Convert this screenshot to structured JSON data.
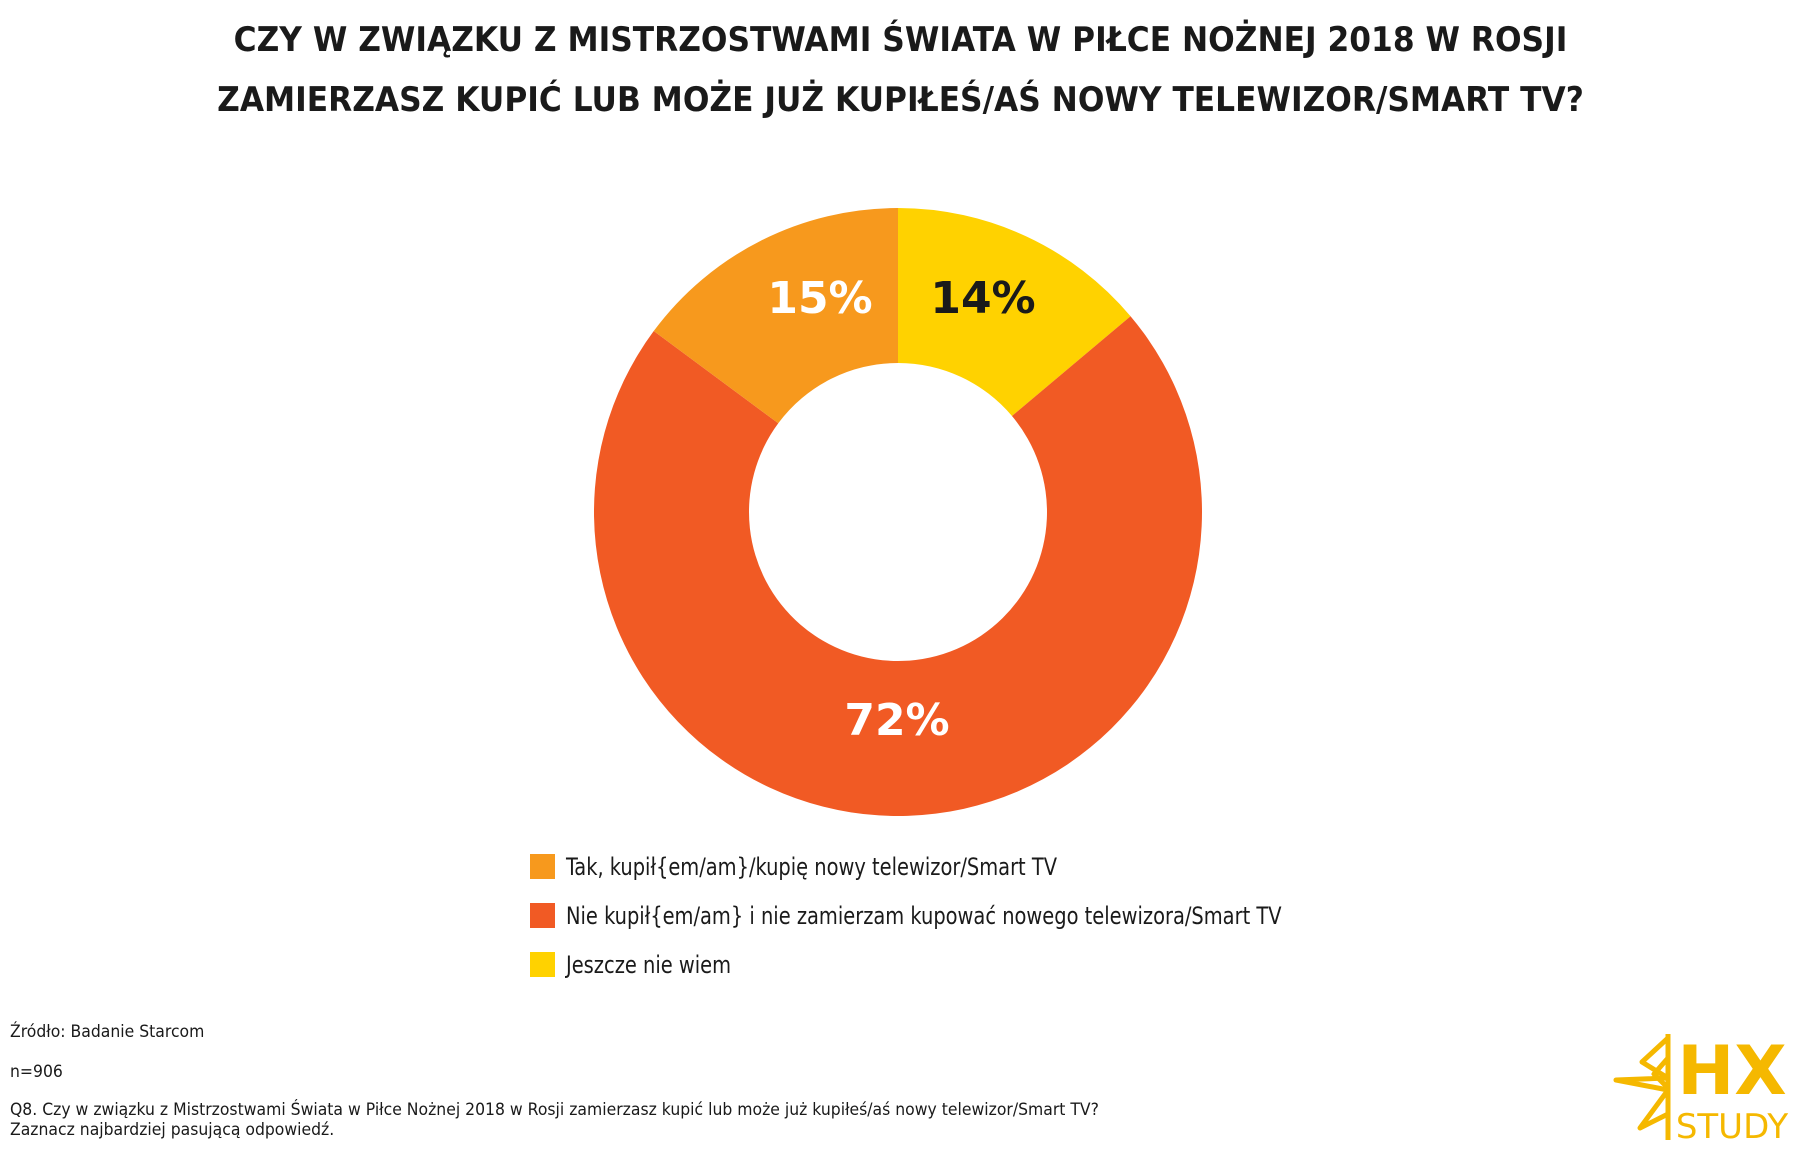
{
  "title": {
    "line1": "CZY W ZWIĄZKU Z MISTRZOSTWAMI ŚWIATA W PIŁCE NOŻNEJ 2018 W ROSJI",
    "line2": "ZAMIERZASZ KUPIĆ LUB MOŻE JUŻ KUPIŁEŚ/AŚ NOWY TELEWIZOR/SMART TV?"
  },
  "legend": {
    "items": [
      {
        "label": "Tak, kupił{em/am}/kupię nowy telewizor/Smart TV",
        "color": "#F7991D"
      },
      {
        "label": "Nie kupił{em/am} i nie zamierzam kupować nowego telewizora/Smart TV",
        "color": "#F15A24"
      },
      {
        "label": "Jeszcze nie wiem",
        "color": "#FFD200"
      }
    ]
  },
  "footer": {
    "source": "Źródło: Badanie Starcom",
    "sample": "n=906",
    "question_line1": "Q8. Czy w związku z Mistrzostwami Świata w Piłce Nożnej 2018 w Rosji zamierzasz kupić lub może już kupiłeś/aś nowy telewizor/Smart TV?",
    "question_line2": "Zaznacz najbardziej pasującą odpowiedź."
  },
  "logo": {
    "top": "HX",
    "bottom": "STUDY",
    "color": "#F5B800"
  },
  "chart_data": {
    "type": "pie",
    "variant": "donut",
    "title": "CZY W ZWIĄZKU Z MISTRZOSTWAMI ŚWIATA W PIŁCE NOŻNEJ 2018 W ROSJI ZAMIERZASZ KUPIĆ LUB MOŻE JUŻ KUPIŁEŚ/AŚ NOWY TELEWIZOR/SMART TV?",
    "categories": [
      "Tak, kupił{em/am}/kupię nowy telewizor/Smart TV",
      "Nie kupił{em/am} i nie zamierzam kupować nowego telewizora/Smart TV",
      "Jeszcze nie wiem"
    ],
    "values": [
      15,
      72,
      14
    ],
    "labels": [
      "15%",
      "72%",
      "14%"
    ],
    "colors": [
      "#F7991D",
      "#F15A24",
      "#FFD200"
    ],
    "label_colors": [
      "#FFFFFF",
      "#FFFFFF",
      "#1A1A1A"
    ],
    "legend_position": "bottom",
    "unit": "%"
  }
}
